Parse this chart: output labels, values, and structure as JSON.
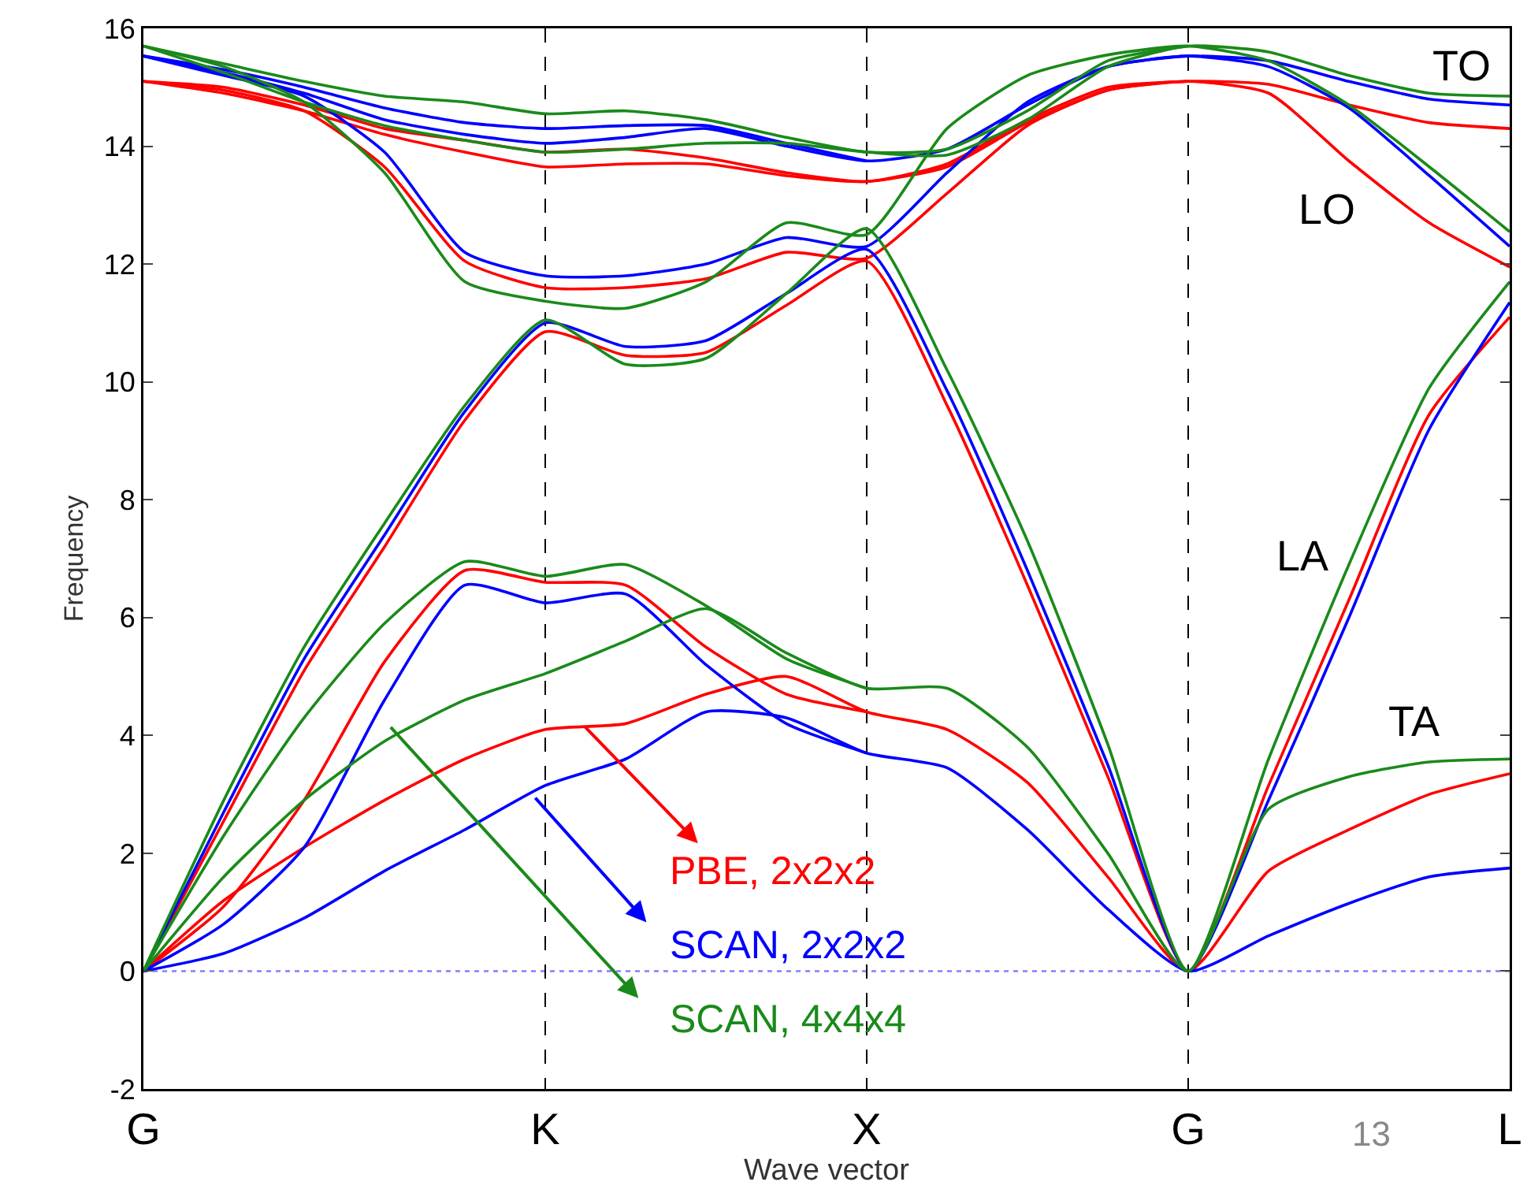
{
  "chart_data": {
    "type": "line",
    "xlabel": "Wave vector",
    "ylabel": "Frequency",
    "categories": [
      "G",
      null,
      null,
      null,
      null,
      "K",
      null,
      null,
      null,
      "X",
      null,
      null,
      null,
      "G",
      null,
      null,
      null,
      "L"
    ],
    "ylim": [
      -2,
      16
    ],
    "yticks": [
      -2,
      0,
      2,
      4,
      6,
      8,
      10,
      12,
      14,
      16
    ],
    "grid": "x",
    "legend": "bottom",
    "marker": "none",
    "line_style": "solid",
    "ref_lines": [
      {
        "axis": "y",
        "value": 0,
        "color": "#8080ff",
        "line_style": "dotted"
      }
    ],
    "annotations": [
      "TO",
      "LO",
      "LA",
      "TA",
      "13"
    ],
    "series": [
      {
        "name": "PBE, 2x2x2",
        "color": "#ff0000",
        "values": [
          0,
          1.2,
          2.1,
          2.9,
          3.6,
          4.1,
          4.2,
          4.7,
          5.0,
          4.4,
          4.1,
          3.2,
          1.6,
          0,
          1.7,
          2.4,
          3.0,
          3.35
        ]
      },
      {
        "color": "#ff0000",
        "values": [
          0,
          1.1,
          2.9,
          5.25,
          6.8,
          6.6,
          6.55,
          5.5,
          4.7,
          4.4,
          null,
          null,
          null,
          null,
          null,
          null,
          null,
          null
        ]
      },
      {
        "color": "#ff0000",
        "values": [
          0,
          2.55,
          5.1,
          7.2,
          9.35,
          10.85,
          10.45,
          10.5,
          11.3,
          12.05,
          9.6,
          6.55,
          3.3,
          0,
          3.15,
          6.3,
          9.45,
          11.1
        ]
      },
      {
        "color": "#ff0000",
        "values": [
          15.1,
          14.95,
          14.6,
          13.65,
          12.05,
          11.6,
          11.6,
          11.75,
          12.2,
          12.1,
          13.2,
          14.35,
          14.95,
          15.1,
          14.9,
          13.75,
          12.7,
          11.95
        ]
      },
      {
        "color": "#ff0000",
        "values": [
          15.1,
          14.9,
          14.6,
          14.2,
          13.9,
          13.65,
          13.7,
          13.7,
          13.5,
          13.4,
          13.65,
          14.4,
          14.95,
          15.1,
          15.05,
          14.7,
          14.4,
          14.3
        ]
      },
      {
        "color": "#ff0000",
        "values": [
          15.1,
          15.0,
          14.7,
          14.3,
          14.1,
          13.9,
          13.95,
          13.8,
          13.55,
          13.4,
          13.7,
          14.45,
          15.0,
          15.1,
          null,
          null,
          null,
          null
        ]
      },
      {
        "name": "SCAN, 2x2x2",
        "color": "#0000ff",
        "values": [
          0,
          0.3,
          0.9,
          1.7,
          2.4,
          3.15,
          3.6,
          4.4,
          4.3,
          3.7,
          3.45,
          2.4,
          1.05,
          0,
          0.6,
          1.15,
          1.6,
          1.75
        ]
      },
      {
        "color": "#0000ff",
        "values": [
          0,
          0.8,
          2.1,
          4.6,
          6.55,
          6.25,
          6.4,
          5.2,
          4.2,
          3.7,
          null,
          null,
          null,
          null,
          null,
          null,
          null,
          null
        ]
      },
      {
        "color": "#0000ff",
        "values": [
          0,
          2.7,
          5.3,
          7.4,
          9.5,
          11.0,
          10.6,
          10.7,
          11.5,
          12.25,
          9.85,
          6.8,
          3.5,
          0,
          2.9,
          6.0,
          9.2,
          11.35
        ]
      },
      {
        "color": "#0000ff",
        "values": [
          15.53,
          15.2,
          14.85,
          13.9,
          12.2,
          11.8,
          11.8,
          12.0,
          12.45,
          12.3,
          13.55,
          14.75,
          15.35,
          15.53,
          15.35,
          14.65,
          13.5,
          12.3
        ]
      },
      {
        "color": "#0000ff",
        "values": [
          15.53,
          15.25,
          14.9,
          14.45,
          14.2,
          14.05,
          14.15,
          14.3,
          14.0,
          13.75,
          13.95,
          14.7,
          15.35,
          15.53,
          15.45,
          15.1,
          14.8,
          14.7
        ]
      },
      {
        "color": "#0000ff",
        "values": [
          15.53,
          15.3,
          15.0,
          14.65,
          14.4,
          14.3,
          14.35,
          14.35,
          14.05,
          13.75,
          null,
          null,
          null,
          null,
          null,
          null,
          null,
          null
        ]
      },
      {
        "name": "SCAN, 4x4x4",
        "color": "#1a8a1a",
        "values": [
          0,
          1.6,
          2.9,
          3.9,
          4.6,
          5.05,
          5.6,
          6.15,
          5.4,
          4.8,
          4.8,
          3.8,
          2.0,
          0,
          2.75,
          3.3,
          3.55,
          3.6
        ]
      },
      {
        "color": "#1a8a1a",
        "values": [
          0,
          2.3,
          4.3,
          5.9,
          6.95,
          6.7,
          6.9,
          6.2,
          5.3,
          4.8,
          null,
          null,
          null,
          null,
          null,
          null,
          null,
          null
        ]
      },
      {
        "color": "#1a8a1a",
        "values": [
          0,
          2.9,
          5.5,
          7.6,
          9.6,
          11.05,
          10.3,
          10.4,
          11.5,
          12.6,
          10.2,
          7.3,
          3.85,
          0,
          3.6,
          6.9,
          9.9,
          11.7
        ]
      },
      {
        "color": "#1a8a1a",
        "values": [
          15.7,
          15.35,
          14.75,
          13.55,
          11.7,
          11.37,
          11.25,
          11.7,
          12.7,
          12.5,
          14.3,
          15.2,
          15.55,
          15.7,
          15.45,
          14.7,
          13.65,
          12.55
        ]
      },
      {
        "color": "#1a8a1a",
        "values": [
          15.7,
          15.25,
          14.75,
          14.35,
          14.1,
          13.9,
          13.95,
          14.05,
          14.05,
          13.9,
          13.85,
          14.45,
          15.35,
          15.7,
          15.6,
          15.2,
          14.9,
          14.85
        ]
      },
      {
        "color": "#1a8a1a",
        "values": [
          15.7,
          15.4,
          15.1,
          14.85,
          14.75,
          14.55,
          14.6,
          14.45,
          14.15,
          13.9,
          13.95,
          14.6,
          15.45,
          15.7,
          null,
          null,
          null,
          null
        ]
      }
    ]
  }
}
